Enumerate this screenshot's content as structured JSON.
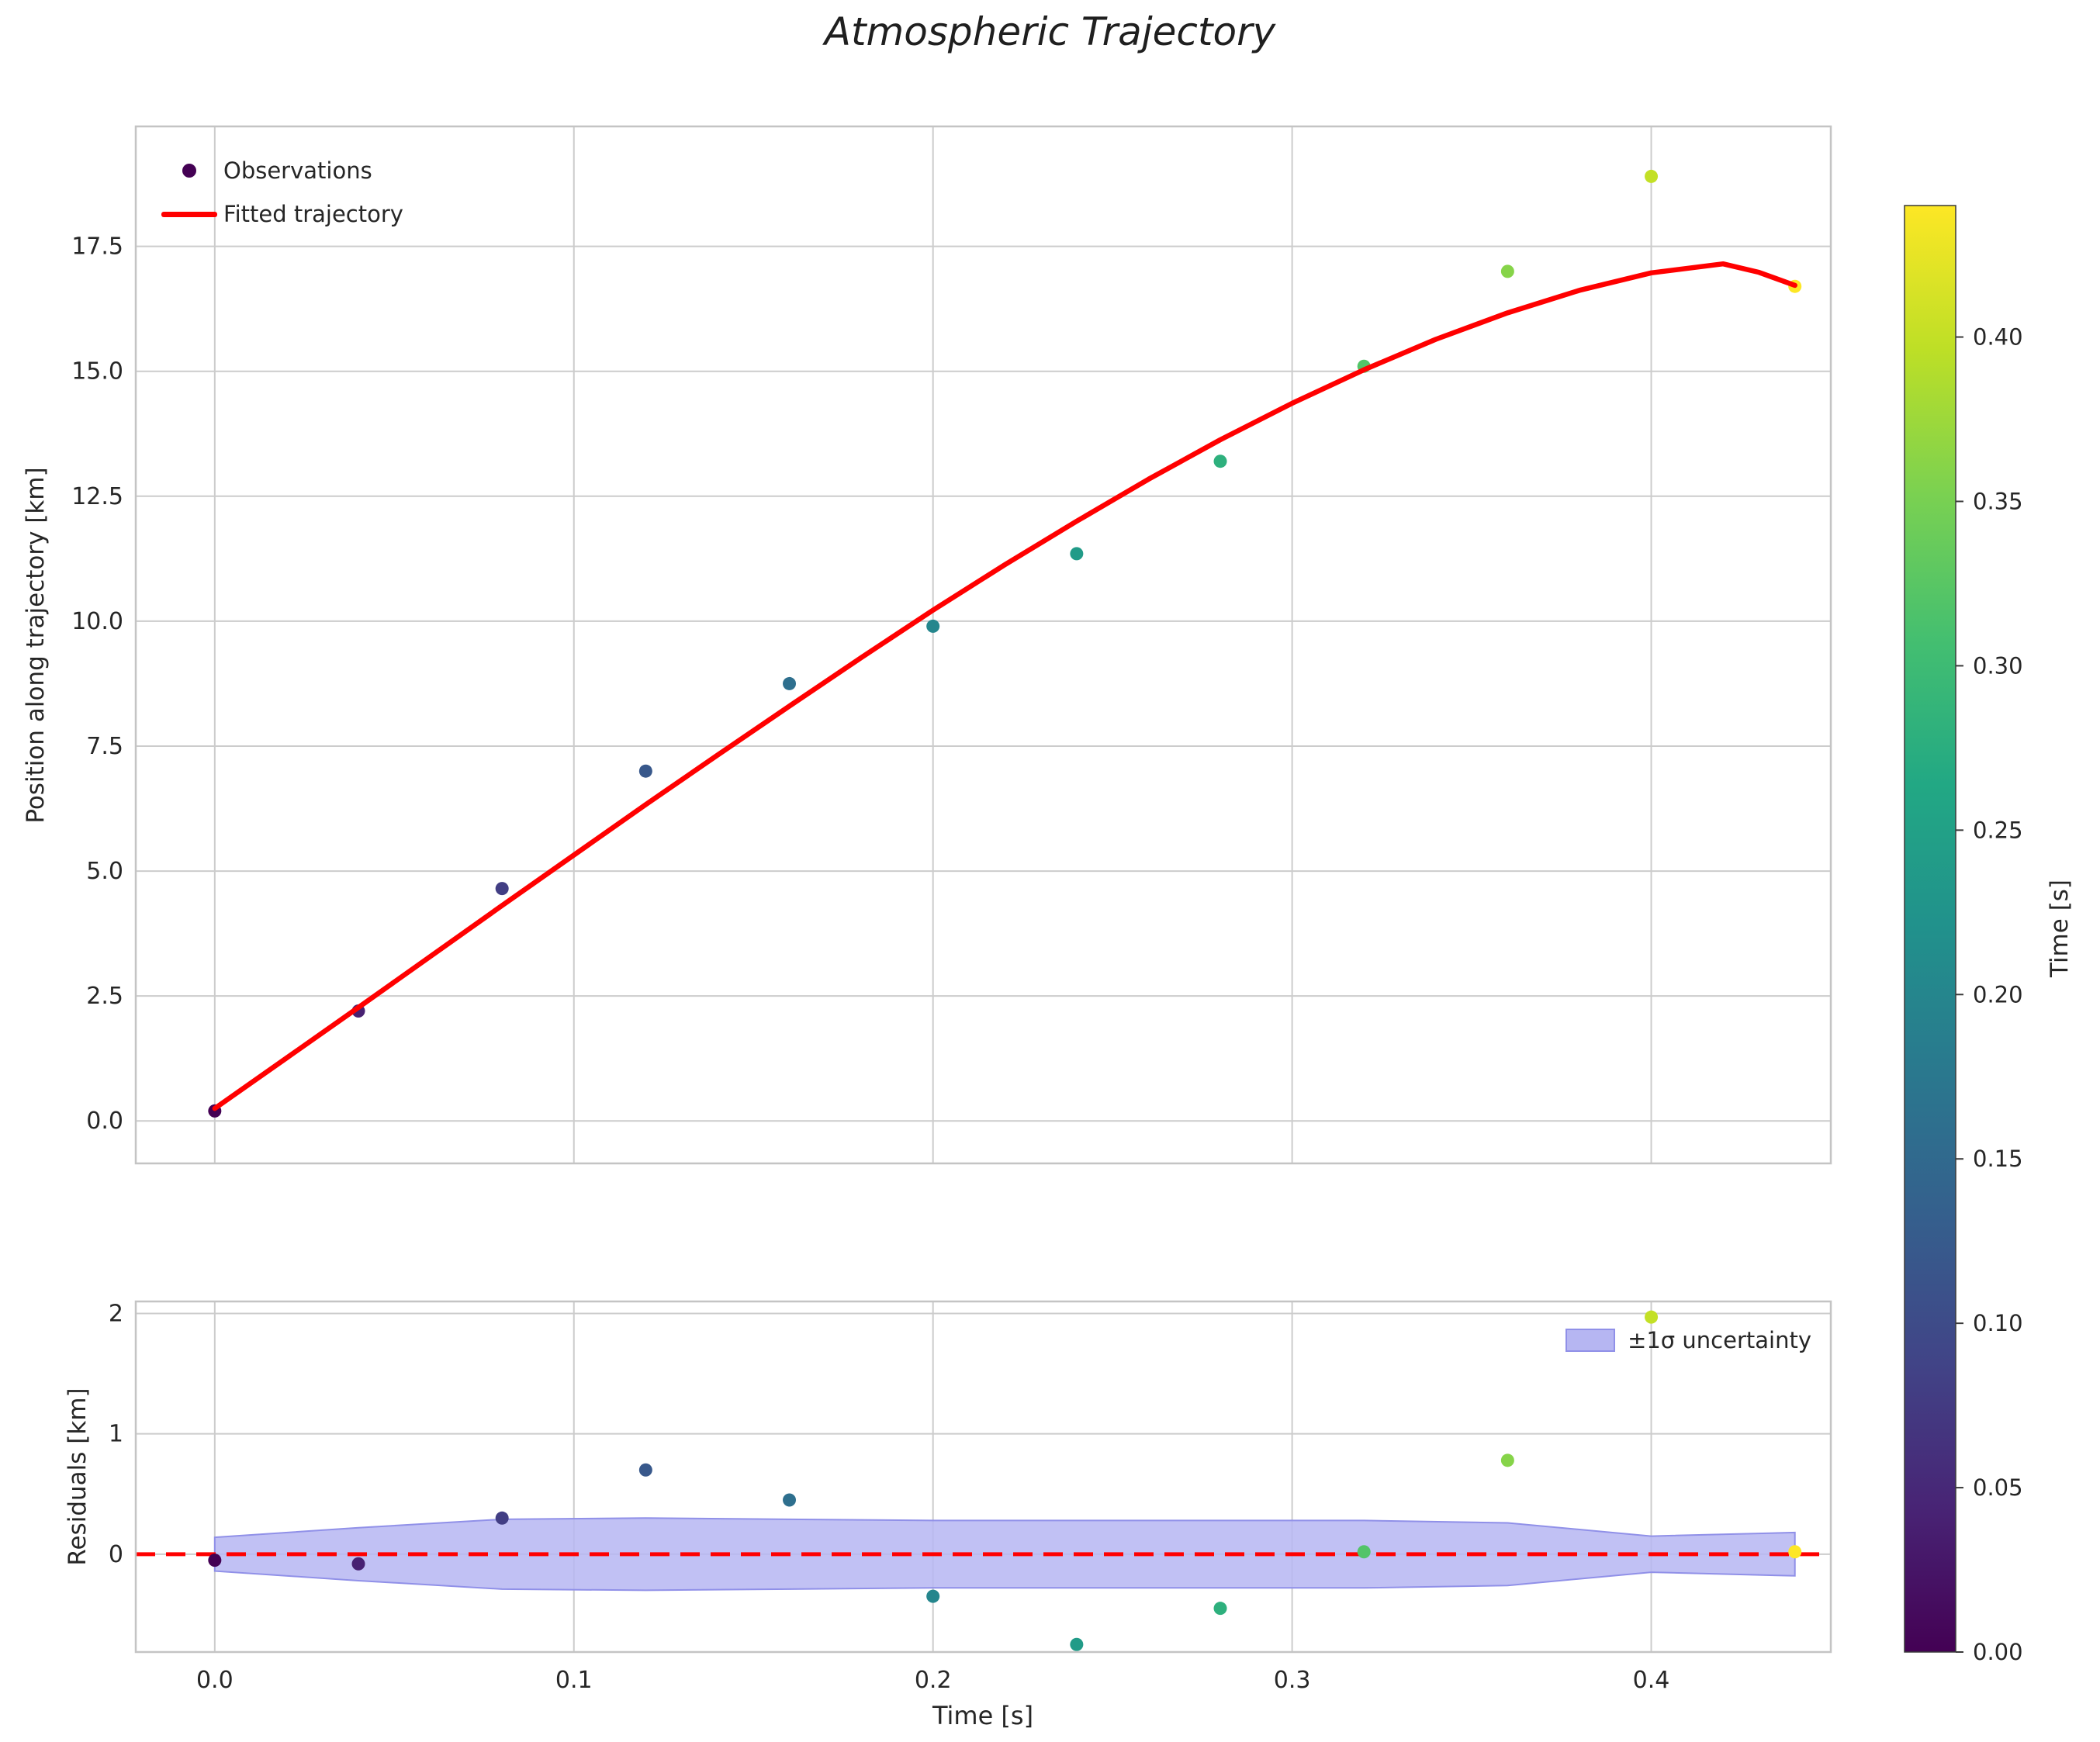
{
  "title": "Atmospheric Trajectory",
  "colors": {
    "fit_line": "#ff0000",
    "zero_line": "#ff0000",
    "band_fill": "#b6b6f2",
    "band_edge": "#9090e8",
    "grid": "#cccccc",
    "frame": "#c4c4c4",
    "text": "#262626",
    "viridis_stops": [
      "#440154",
      "#482475",
      "#414487",
      "#355f8d",
      "#2a788e",
      "#21918c",
      "#22a884",
      "#44bf70",
      "#7ad151",
      "#bddf26",
      "#fde725"
    ]
  },
  "colorbar": {
    "label": "Time [s]",
    "min": 0.0,
    "max": 0.44,
    "tick_values": [
      0.0,
      0.05,
      0.1,
      0.15,
      0.2,
      0.25,
      0.3,
      0.35,
      0.4
    ],
    "tick_labels": [
      "0.00",
      "0.05",
      "0.10",
      "0.15",
      "0.20",
      "0.25",
      "0.30",
      "0.35",
      "0.40"
    ]
  },
  "chart_data": [
    {
      "id": "trajectory-panel",
      "type": "scatter",
      "title": "Atmospheric Trajectory",
      "xlabel": "",
      "ylabel": "Position along trajectory [km]",
      "xlim": [
        -0.022,
        0.45
      ],
      "ylim": [
        -0.85,
        19.9
      ],
      "xtick_values": [
        0.0,
        0.1,
        0.2,
        0.3,
        0.4
      ],
      "xtick_labels": [],
      "ytick_values": [
        0.0,
        2.5,
        5.0,
        7.5,
        10.0,
        12.5,
        15.0,
        17.5
      ],
      "ytick_labels": [
        "0.0",
        "2.5",
        "5.0",
        "7.5",
        "10.0",
        "12.5",
        "15.0",
        "17.5"
      ],
      "grid": true,
      "legend": {
        "position": "upper left",
        "entries": [
          {
            "label": "Observations",
            "type": "marker",
            "color": "#440154"
          },
          {
            "label": "Fitted trajectory",
            "type": "line",
            "color": "#ff0000"
          }
        ]
      },
      "series": [
        {
          "name": "Observations",
          "type": "scatter",
          "colormap": "viridis",
          "x": [
            0.0,
            0.04,
            0.08,
            0.12,
            0.16,
            0.2,
            0.24,
            0.28,
            0.32,
            0.36,
            0.4,
            0.44
          ],
          "y": [
            0.2,
            2.2,
            4.65,
            7.0,
            8.75,
            9.9,
            11.35,
            13.2,
            15.1,
            17.0,
            18.9,
            16.7
          ],
          "color_values": [
            0.0,
            0.04,
            0.08,
            0.12,
            0.16,
            0.2,
            0.24,
            0.28,
            0.32,
            0.36,
            0.4,
            0.44
          ]
        },
        {
          "name": "Fitted trajectory",
          "type": "line",
          "color": "#ff0000",
          "x": [
            0.0,
            0.02,
            0.04,
            0.06,
            0.08,
            0.1,
            0.12,
            0.14,
            0.16,
            0.18,
            0.2,
            0.22,
            0.24,
            0.26,
            0.28,
            0.3,
            0.32,
            0.34,
            0.36,
            0.38,
            0.4,
            0.42,
            0.43,
            0.44
          ],
          "y": [
            0.25,
            1.26,
            2.27,
            3.29,
            4.31,
            5.32,
            6.33,
            7.32,
            8.3,
            9.27,
            10.22,
            11.13,
            12.0,
            12.84,
            13.63,
            14.36,
            15.03,
            15.64,
            16.17,
            16.62,
            16.97,
            17.15,
            16.98,
            16.72
          ]
        }
      ]
    },
    {
      "id": "residuals-panel",
      "type": "scatter",
      "title": "",
      "xlabel": "Time [s]",
      "ylabel": "Residuals [km]",
      "xlim": [
        -0.022,
        0.45
      ],
      "ylim": [
        -0.813,
        2.1
      ],
      "xtick_values": [
        0.0,
        0.1,
        0.2,
        0.3,
        0.4
      ],
      "xtick_labels": [
        "0.0",
        "0.1",
        "0.2",
        "0.3",
        "0.4"
      ],
      "ytick_values": [
        0,
        1,
        2
      ],
      "ytick_labels": [
        "0",
        "1",
        "2"
      ],
      "grid": true,
      "legend": {
        "position": "upper right",
        "entries": [
          {
            "label": "±1σ uncertainty",
            "type": "patch",
            "color": "#b6b6f2"
          }
        ]
      },
      "zero_line": {
        "y": 0,
        "style": "dashed",
        "color": "#ff0000"
      },
      "band": {
        "name": "±1σ uncertainty",
        "x": [
          0.0,
          0.04,
          0.08,
          0.12,
          0.16,
          0.2,
          0.24,
          0.28,
          0.32,
          0.36,
          0.4,
          0.44
        ],
        "upper": [
          0.14,
          0.22,
          0.29,
          0.3,
          0.29,
          0.28,
          0.28,
          0.28,
          0.28,
          0.26,
          0.15,
          0.18
        ],
        "lower": [
          -0.14,
          -0.22,
          -0.29,
          -0.3,
          -0.29,
          -0.28,
          -0.28,
          -0.28,
          -0.28,
          -0.26,
          -0.15,
          -0.18
        ]
      },
      "series": [
        {
          "name": "Residuals",
          "type": "scatter",
          "colormap": "viridis",
          "x": [
            0.0,
            0.04,
            0.08,
            0.12,
            0.16,
            0.2,
            0.24,
            0.28,
            0.32,
            0.36,
            0.4,
            0.44
          ],
          "y": [
            -0.05,
            -0.08,
            0.3,
            0.7,
            0.45,
            -0.35,
            -0.75,
            -0.45,
            0.02,
            0.78,
            1.97,
            0.02
          ],
          "color_values": [
            0.0,
            0.04,
            0.08,
            0.12,
            0.16,
            0.2,
            0.24,
            0.28,
            0.32,
            0.36,
            0.4,
            0.44
          ]
        }
      ]
    }
  ]
}
